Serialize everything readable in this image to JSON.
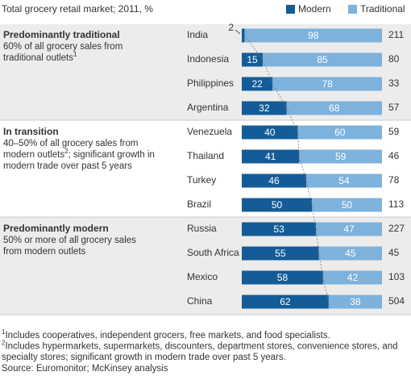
{
  "chart_data": {
    "type": "stacked_bar_horizontal",
    "title": "Total grocery retail market; 2011, %",
    "categories": [
      "India",
      "Indonesia",
      "Philippines",
      "Argentina",
      "Venezuela",
      "Thailand",
      "Turkey",
      "Brazil",
      "Russia",
      "South Africa",
      "Mexico",
      "China"
    ],
    "series": [
      {
        "name": "Modern",
        "color": "#145c98",
        "values": [
          2,
          15,
          22,
          32,
          40,
          41,
          46,
          50,
          53,
          55,
          58,
          62
        ]
      },
      {
        "name": "Traditional",
        "color": "#7db2dc",
        "values": [
          98,
          85,
          78,
          68,
          60,
          59,
          54,
          50,
          47,
          45,
          42,
          38
        ]
      }
    ],
    "market_size": [
      211,
      80,
      33,
      57,
      59,
      46,
      78,
      113,
      227,
      45,
      103,
      504
    ],
    "xlim": [
      0,
      100
    ],
    "groups": [
      {
        "title": "Predominantly traditional",
        "lines": [
          [
            "60% of all grocery sales from"
          ],
          [
            "traditional outlets",
            {
              "sup": "1"
            }
          ]
        ]
      },
      {
        "title": "In transition",
        "lines": [
          [
            "40–50% of all grocery sales from"
          ],
          [
            "modern outlets",
            {
              "sup": "2"
            },
            "; significant growth in"
          ],
          [
            "modern trade over past 5 years"
          ]
        ]
      },
      {
        "title": "Predominantly modern",
        "lines": [
          [
            "50% or more of all grocery sales"
          ],
          [
            "from modern outlets"
          ]
        ]
      }
    ],
    "footnotes": [
      [
        {
          "sup": "1"
        },
        "Includes cooperatives, independent grocers, free markets, and food specialists."
      ],
      [
        {
          "sup": "2"
        },
        "Includes hypermarkets, supermarkets, discounters, department stores, convenience stores, and"
      ],
      [
        "specialty stores; significant growth in modern trade over past 5 years."
      ]
    ],
    "source": "Source: Euromonitor; McKinsey analysis"
  }
}
